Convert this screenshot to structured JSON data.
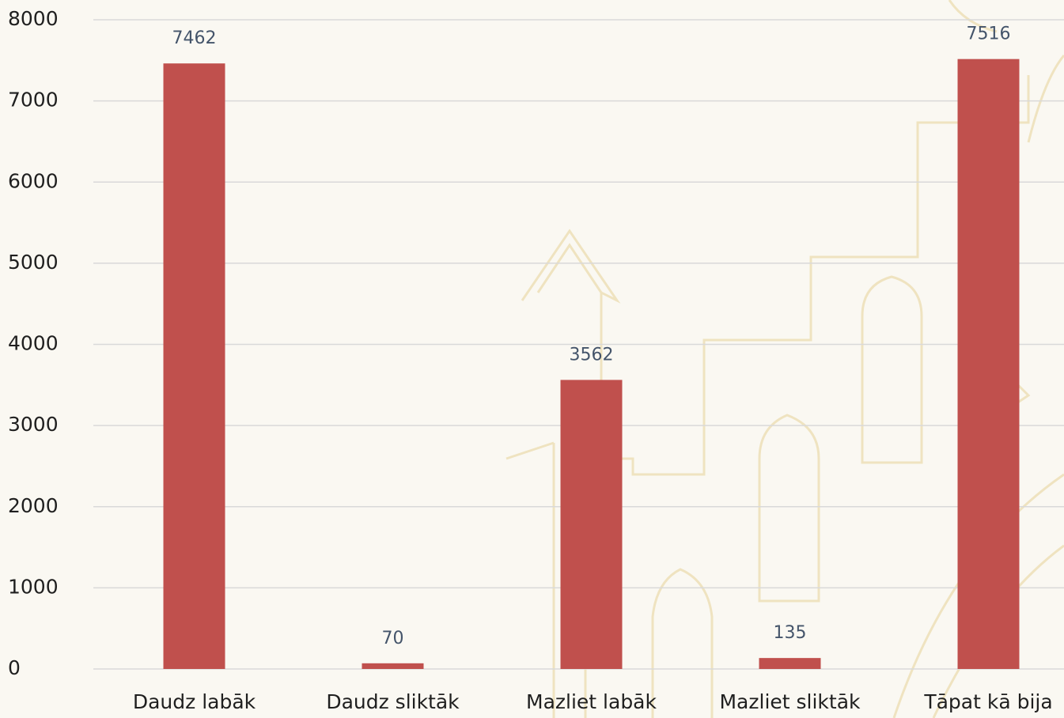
{
  "chart_data": {
    "type": "bar",
    "categories": [
      "Daudz labāk",
      "Daudz sliktāk",
      "Mazliet labāk",
      "Mazliet sliktāk",
      "Tāpat kā bija"
    ],
    "values": [
      7462,
      70,
      3562,
      135,
      7516
    ],
    "color": "#c0504d",
    "ylim": [
      0,
      8000
    ],
    "yticks": [
      0,
      1000,
      2000,
      3000,
      4000,
      5000,
      6000,
      7000,
      8000
    ],
    "grid": true
  }
}
